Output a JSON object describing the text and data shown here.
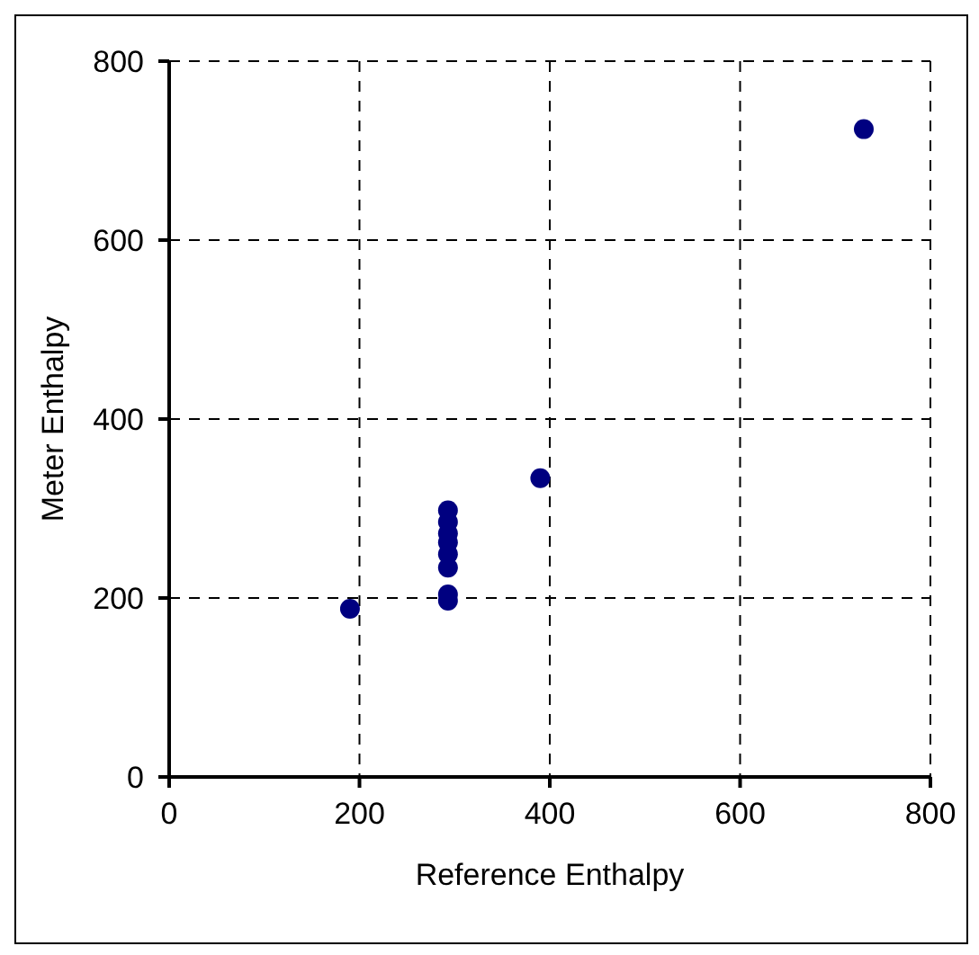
{
  "chart_data": {
    "type": "scatter",
    "xlabel": "Reference Enthalpy",
    "ylabel": "Meter Enthalpy",
    "x": [
      190,
      293,
      293,
      293,
      293,
      293,
      293,
      293,
      293,
      390,
      730
    ],
    "series": [
      {
        "color": "#000080",
        "values": [
          188,
          197,
          204,
          234,
          249,
          262,
          272,
          285,
          298,
          334,
          724
        ]
      }
    ],
    "xlim": [
      0,
      800
    ],
    "ylim": [
      0,
      800
    ],
    "xticks": [
      0,
      200,
      400,
      600,
      800
    ],
    "yticks": [
      0,
      200,
      400,
      600,
      800
    ],
    "grid": true,
    "marker": "circle",
    "legend": false
  }
}
